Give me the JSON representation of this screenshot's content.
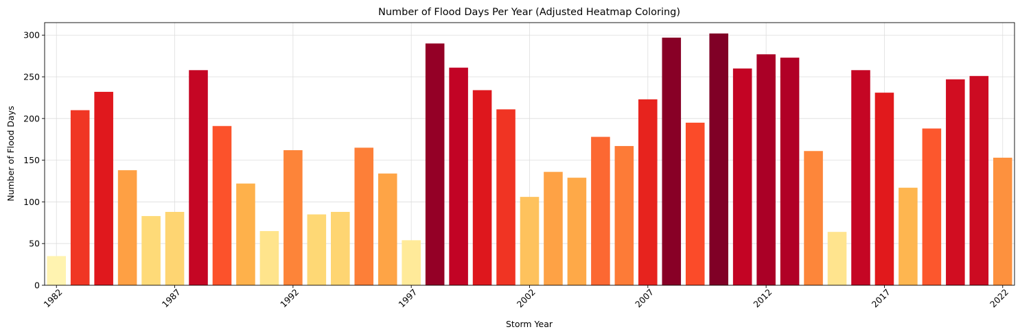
{
  "chart_data": {
    "type": "bar",
    "title": "Number of Flood Days Per Year (Adjusted Heatmap Coloring)",
    "xlabel": "Storm Year",
    "ylabel": "Number of Flood Days",
    "ylim": [
      0,
      315
    ],
    "yticks": [
      0,
      50,
      100,
      150,
      200,
      250,
      300
    ],
    "xtick_years": [
      1982,
      1987,
      1992,
      1997,
      2002,
      2007,
      2012,
      2017,
      2022
    ],
    "grid": true,
    "colormap": "YlOrRd",
    "color_range": [
      35,
      302
    ],
    "categories": [
      1982,
      1983,
      1984,
      1985,
      1986,
      1987,
      1988,
      1989,
      1990,
      1991,
      1992,
      1993,
      1994,
      1995,
      1996,
      1997,
      1998,
      1999,
      2000,
      2001,
      2002,
      2003,
      2004,
      2005,
      2006,
      2007,
      2008,
      2009,
      2010,
      2011,
      2012,
      2013,
      2014,
      2015,
      2016,
      2017,
      2018,
      2019,
      2020,
      2021,
      2022
    ],
    "values": [
      35,
      210,
      232,
      138,
      83,
      88,
      258,
      191,
      122,
      65,
      162,
      85,
      88,
      165,
      134,
      54,
      290,
      261,
      234,
      211,
      106,
      136,
      129,
      178,
      167,
      223,
      297,
      195,
      302,
      260,
      277,
      273,
      161,
      64,
      258,
      231,
      117,
      188,
      247,
      251,
      153
    ]
  }
}
